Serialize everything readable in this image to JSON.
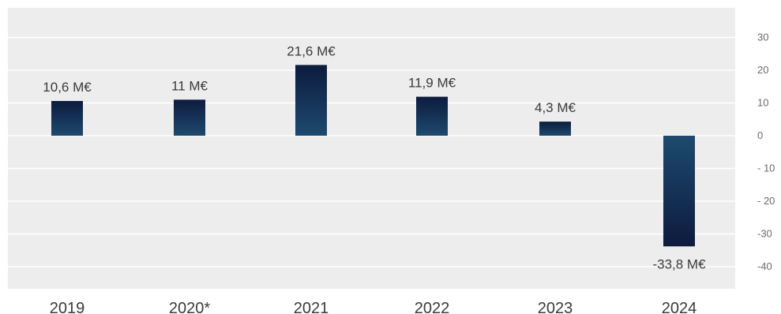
{
  "chart_data": {
    "type": "bar",
    "categories": [
      "2019",
      "2020*",
      "2021",
      "2022",
      "2023",
      "2024"
    ],
    "values": [
      10.6,
      11,
      21.6,
      11.9,
      4.3,
      -33.8
    ],
    "data_labels": [
      "10,6 M€",
      "11 M€",
      "21,6 M€",
      "11,9 M€",
      "4,3 M€",
      "-33,8 M€"
    ],
    "yticks": [
      30,
      20,
      10,
      0,
      -10,
      -20,
      -30,
      -40
    ],
    "ytick_labels": [
      "30",
      "20",
      "10",
      "0",
      "- 10",
      "- 20",
      "-30",
      "-40"
    ],
    "ylim": [
      -40,
      30
    ],
    "y_axis_position": "right",
    "grid": true,
    "title": "",
    "xlabel": "",
    "ylabel": "",
    "colors": {
      "plot_background": "#ededed",
      "gridline": "#ffffff",
      "bar_top": "#0d1b3e",
      "bar_bottom": "#1d4a6e"
    }
  }
}
